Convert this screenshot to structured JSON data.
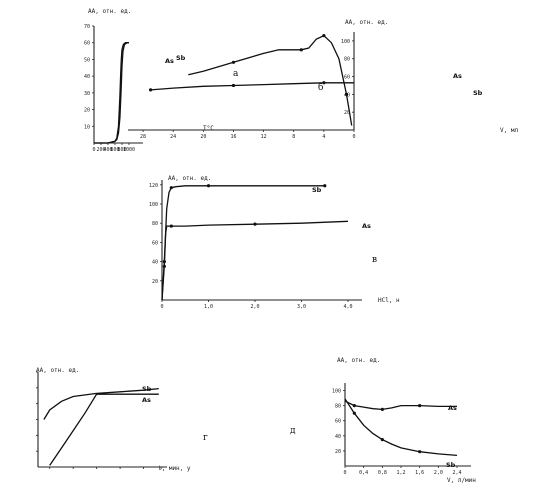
{
  "chart_data": [
    {
      "type": "line",
      "panel_label": "a",
      "xlabel": "T°C",
      "ylabel": "AA, отн. ед.",
      "xlim": [
        0,
        1400
      ],
      "ylim": [
        0,
        70
      ],
      "x_ticks": [
        "0",
        "200",
        "400",
        "600",
        "800",
        "1000"
      ],
      "y_ticks": [
        "10",
        "20",
        "30",
        "40",
        "50",
        "60",
        "70"
      ],
      "series": [
        {
          "name": "As",
          "x": [
            0,
            400,
            600,
            650,
            700,
            740,
            760,
            780,
            800,
            840,
            900,
            1000
          ],
          "y": [
            0,
            0,
            1,
            3,
            10,
            28,
            40,
            50,
            56,
            59,
            60,
            60
          ]
        },
        {
          "name": "Sb",
          "x": [
            0,
            400,
            600,
            650,
            700,
            740,
            770,
            800,
            830,
            870,
            950,
            1000
          ],
          "y": [
            0,
            0,
            1,
            2,
            6,
            15,
            30,
            46,
            55,
            59,
            60,
            60
          ]
        }
      ]
    },
    {
      "type": "line",
      "panel_label": "б",
      "xlabel": "V, мл",
      "ylabel": "AA, отн. ед.",
      "xlim": [
        0,
        30
      ],
      "ylim": [
        0,
        110
      ],
      "x_ticks": [
        "0",
        "4",
        "8",
        "12",
        "16",
        "20",
        "24",
        "28"
      ],
      "y_ticks": [
        "20",
        "40",
        "60",
        "80",
        "100"
      ],
      "series": [
        {
          "name": "As",
          "x": [
            0.3,
            1,
            2,
            3,
            4,
            5,
            6,
            7,
            10,
            12,
            16,
            20,
            22
          ],
          "y": [
            5,
            40,
            80,
            98,
            106,
            102,
            92,
            90,
            90,
            86,
            76,
            66,
            62
          ]
        },
        {
          "name": "Sb",
          "x": [
            0,
            4,
            8,
            12,
            16,
            20,
            24,
            27
          ],
          "y": [
            53,
            53,
            52,
            51,
            50,
            49,
            47,
            45
          ]
        }
      ]
    },
    {
      "type": "line",
      "panel_label": "в",
      "xlabel": "HCl, н",
      "ylabel": "AA, отн. ед.",
      "xlim": [
        0,
        4.3
      ],
      "ylim": [
        0,
        125
      ],
      "x_ticks": [
        "0",
        "1,0",
        "2,0",
        "3,0",
        "4,0"
      ],
      "y_ticks": [
        "20",
        "40",
        "60",
        "80",
        "100",
        "120"
      ],
      "series": [
        {
          "name": "Sb",
          "x": [
            0,
            0.05,
            0.1,
            0.15,
            0.2,
            0.3,
            0.5,
            1.0,
            2.0,
            3.0,
            3.5
          ],
          "y": [
            0,
            40,
            95,
            112,
            117,
            118,
            119,
            119,
            119,
            119,
            119
          ]
        },
        {
          "name": "As",
          "x": [
            0,
            0.05,
            0.08,
            0.1,
            0.2,
            0.5,
            1.0,
            2.0,
            3.0,
            4.0
          ],
          "y": [
            0,
            35,
            70,
            77,
            77,
            77,
            78,
            79,
            80,
            82
          ]
        }
      ]
    },
    {
      "type": "line",
      "panel_label": "г",
      "xlabel": "t, мин, у",
      "ylabel": "AA, отн. ед.",
      "xlim": [
        0,
        11
      ],
      "ylim": [
        0,
        120
      ],
      "x_ticks": [
        "",
        "",
        "",
        "",
        "",
        ""
      ],
      "y_ticks": [
        "",
        "",
        "",
        "",
        "",
        ""
      ],
      "series": [
        {
          "name": "Sb",
          "x": [
            0.5,
            1,
            2,
            3,
            5,
            7,
            9,
            10.3
          ],
          "y": [
            60,
            72,
            83,
            89,
            93,
            95,
            97,
            99
          ]
        },
        {
          "name": "As",
          "x": [
            1,
            2,
            3,
            4,
            5,
            6,
            8,
            10.3
          ],
          "y": [
            2,
            24,
            46,
            68,
            92,
            92,
            92,
            92
          ]
        }
      ]
    },
    {
      "type": "line",
      "panel_label": "д",
      "xlabel": "V, л/мин",
      "ylabel": "AA, отн. ед.",
      "xlim": [
        0,
        2.7
      ],
      "ylim": [
        0,
        110
      ],
      "x_ticks": [
        "0",
        "0,4",
        "0,8",
        "1,2",
        "1,6",
        "2,0",
        "2,4"
      ],
      "y_ticks": [
        "20",
        "40",
        "60",
        "80",
        "100"
      ],
      "series": [
        {
          "name": "Sb",
          "x": [
            0,
            0.2,
            0.4,
            0.6,
            0.8,
            1.0,
            1.2,
            1.6,
            2.0,
            2.4
          ],
          "y": [
            86,
            80,
            78,
            76,
            75,
            77,
            80,
            80,
            79,
            79
          ]
        },
        {
          "name": "As",
          "x": [
            0,
            0.2,
            0.4,
            0.6,
            0.8,
            1.0,
            1.2,
            1.6,
            2.0,
            2.4
          ],
          "y": [
            89,
            70,
            54,
            43,
            35,
            29,
            24,
            19,
            16,
            14
          ]
        }
      ]
    }
  ]
}
